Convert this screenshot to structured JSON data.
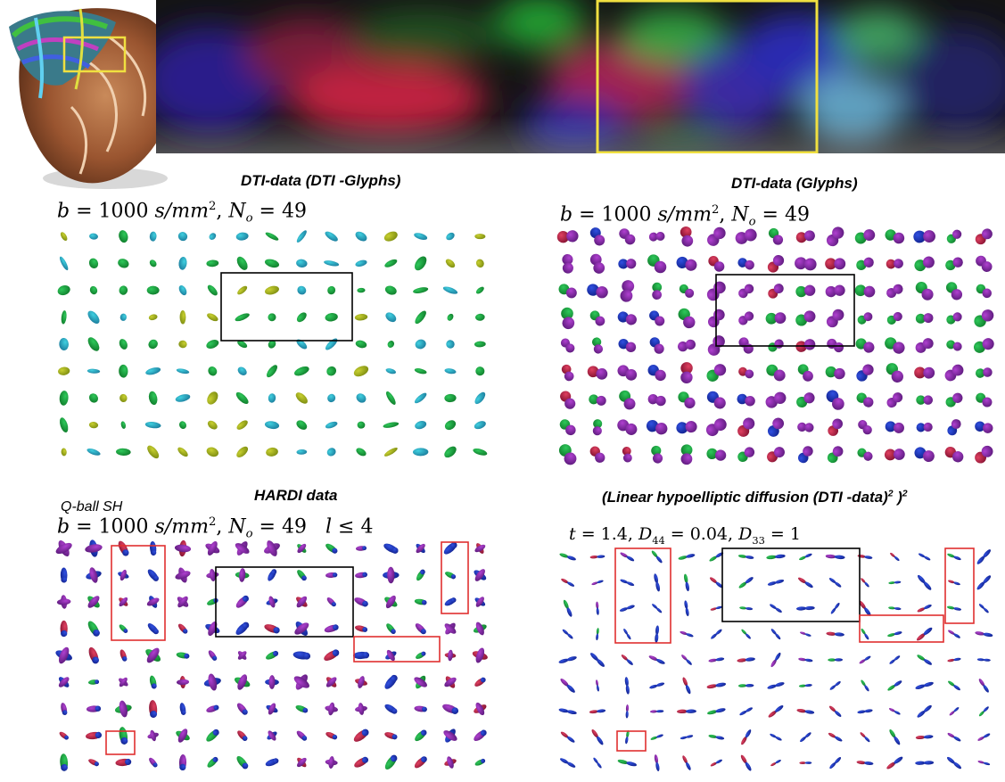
{
  "figure": {
    "panels": [
      {
        "id": "dti-ellipsoids",
        "title": "DTI-data    (DTI -Glyphs)",
        "params": "b = 1000 s/mm², N_o = 49",
        "param_parts": {
          "b": "1000",
          "unit": "s/mm",
          "exp": "2",
          "no": "49"
        },
        "glyph": "ellipsoid",
        "rows": 9,
        "cols": 15
      },
      {
        "id": "dti-glyphs",
        "title": "DTI-data     (Glyphs)",
        "params": "b = 1000 s/mm², N_o = 49",
        "param_parts": {
          "b": "1000",
          "unit": "s/mm",
          "exp": "2",
          "no": "49"
        },
        "glyph": "peanut",
        "rows": 9,
        "cols": 15
      },
      {
        "id": "hardi",
        "title": "HARDI data",
        "subtitle": "Q-ball SH",
        "params": "b = 1000 s/mm², N_o = 49  l ≤ 4",
        "param_parts": {
          "b": "1000",
          "unit": "s/mm",
          "exp": "2",
          "no": "49",
          "l": "4"
        },
        "glyph": "odf",
        "rows": 9,
        "cols": 15
      },
      {
        "id": "hypoelliptic",
        "title": "(Linear hypoelliptic diffusion (DTI -data)",
        "title_sup1": "2",
        "title_tail": " )",
        "title_sup2": "2",
        "params": "t = 1.4, D44 = 0.04, D33 = 1",
        "param_parts": {
          "t": "1.4",
          "d44": "0.04",
          "d33": "1"
        },
        "glyph": "thin",
        "rows": 9,
        "cols": 15
      }
    ]
  },
  "colors": {
    "highlight_box": "#000000",
    "red_box": "#e03030",
    "zoom_box": "#f0e040"
  }
}
